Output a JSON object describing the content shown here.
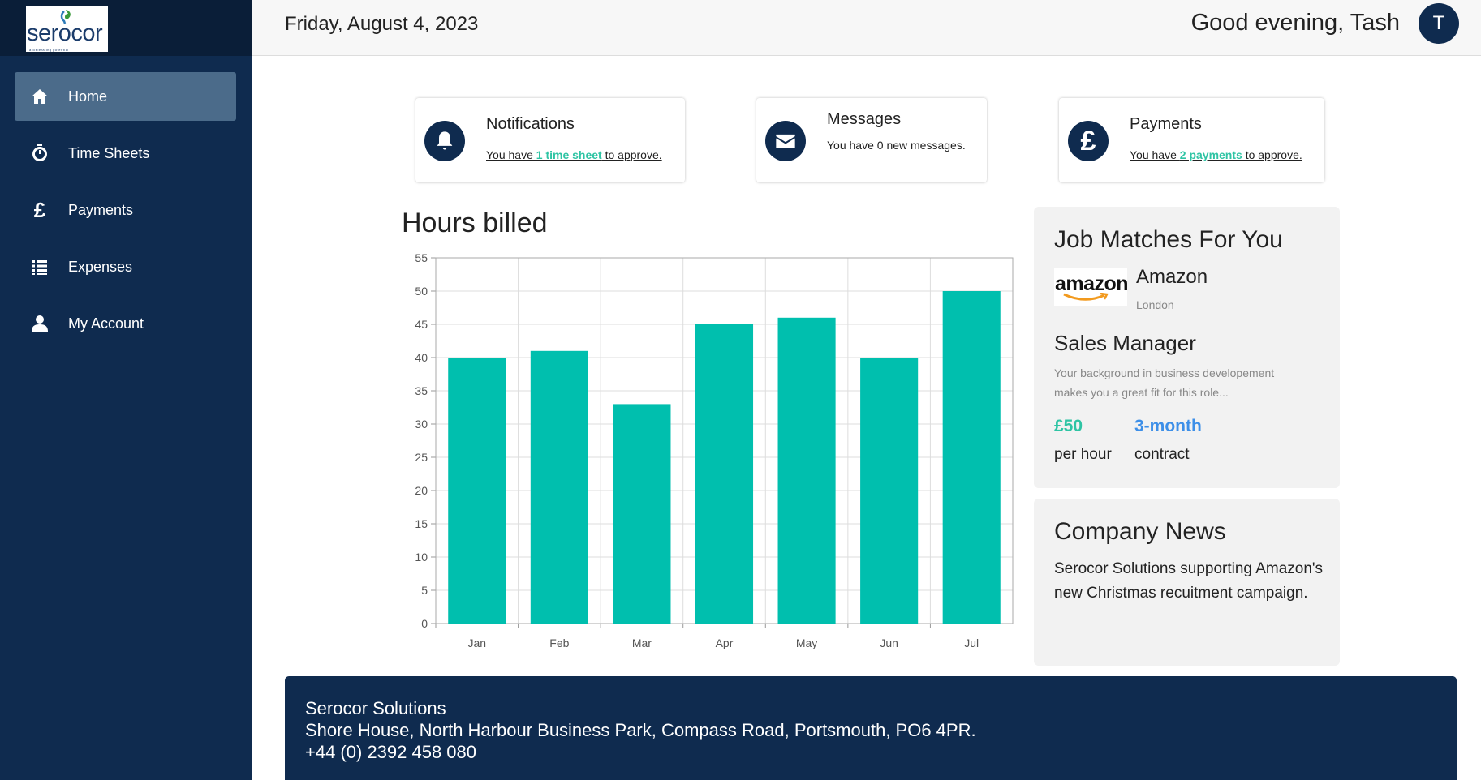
{
  "brand": {
    "name": "serocor",
    "tagline": "accelerating potential"
  },
  "sidebar": {
    "items": [
      {
        "label": "Home",
        "icon": "home-icon",
        "active": true
      },
      {
        "label": "Time Sheets",
        "icon": "stopwatch-icon",
        "active": false
      },
      {
        "label": "Payments",
        "icon": "pound-icon",
        "active": false
      },
      {
        "label": "Expenses",
        "icon": "list-icon",
        "active": false
      },
      {
        "label": "My Account",
        "icon": "user-icon",
        "active": false
      }
    ]
  },
  "header": {
    "date": "Friday, August 4, 2023",
    "greeting": "Good evening, Tash",
    "avatar_initial": "T"
  },
  "cards": {
    "notifications": {
      "title": "Notifications",
      "prefix": "You have ",
      "link": "1 time sheet",
      "suffix": " to approve.",
      "icon": "bell-icon"
    },
    "messages": {
      "title": "Messages",
      "text": "You have 0 new messages.",
      "icon": "envelope-icon"
    },
    "payments": {
      "title": "Payments",
      "prefix": "You have ",
      "link": "2 payments",
      "suffix": " to approve.",
      "icon": "pound-icon"
    }
  },
  "chart_title": "Hours billed",
  "chart_data": {
    "type": "bar",
    "title": "Hours billed",
    "categories": [
      "Jan",
      "Feb",
      "Mar",
      "Apr",
      "May",
      "Jun",
      "Jul"
    ],
    "values": [
      40,
      41,
      33,
      45,
      46,
      40,
      50
    ],
    "ylim": [
      0,
      55
    ],
    "yticks": [
      0,
      5,
      10,
      15,
      20,
      25,
      30,
      35,
      40,
      45,
      50,
      55
    ],
    "grid": true,
    "bar_color": "#00bfae"
  },
  "jobs": {
    "heading": "Job Matches For You",
    "logo_text": "amazon",
    "company": "Amazon",
    "location": "London",
    "role": "Sales Manager",
    "description": "Your background in business developement makes you a great fit for this role...",
    "rate": "£50",
    "rate_unit": "per hour",
    "term": "3-month",
    "term_unit": "contract"
  },
  "news": {
    "heading": "Company News",
    "body": "Serocor Solutions supporting Amazon's new Christmas recuitment campaign."
  },
  "footer": {
    "company": "Serocor Solutions",
    "address": "Shore House, North Harbour Business Park, Compass Road, Portsmouth, PO6 4PR.",
    "phone": "+44 (0) 2392 458 080"
  },
  "colors": {
    "navy": "#0f2b4f",
    "accent": "#2ec4a4",
    "blue": "#3d8fe8",
    "bar": "#00bfae"
  }
}
